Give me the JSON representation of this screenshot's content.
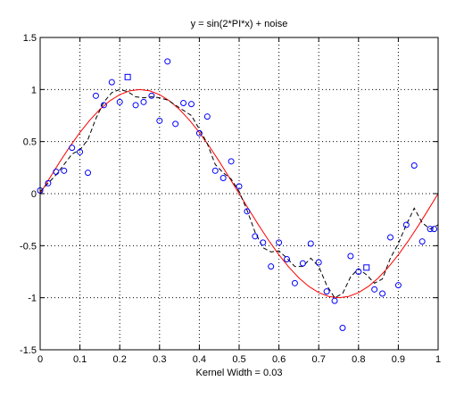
{
  "chart_data": {
    "type": "scatter",
    "title": "y = sin(2*PI*x) + noise",
    "xlabel": "Kernel Width = 0.03",
    "ylabel": "",
    "xlim": [
      0,
      1
    ],
    "ylim": [
      -1.5,
      1.5
    ],
    "xticks": [
      0,
      0.1,
      0.2,
      0.3,
      0.4,
      0.5,
      0.6,
      0.7,
      0.8,
      0.9,
      1
    ],
    "xtick_labels": [
      "0",
      "0.1",
      "0.2",
      "0.3",
      "0.4",
      "0.5",
      "0.6",
      "0.7",
      "0.8",
      "0.9",
      "1"
    ],
    "yticks": [
      -1.5,
      -1,
      -0.5,
      0,
      0.5,
      1,
      1.5
    ],
    "ytick_labels": [
      "-1.5",
      "-1",
      "-0.5",
      "0",
      "0.5",
      "1",
      "1.5"
    ],
    "grid": true,
    "colors": {
      "points": "#0000ff",
      "true_curve": "#ff0000",
      "smoothed": "#000000",
      "grid": "#000000",
      "axes": "#000000"
    },
    "series": [
      {
        "marker": "circle",
        "points": [
          [
            0.0,
            0.03
          ],
          [
            0.02,
            0.1
          ],
          [
            0.04,
            0.21
          ],
          [
            0.06,
            0.22
          ],
          [
            0.08,
            0.44
          ],
          [
            0.1,
            0.4
          ],
          [
            0.12,
            0.2
          ],
          [
            0.14,
            0.94
          ],
          [
            0.16,
            0.85
          ],
          [
            0.18,
            1.07
          ],
          [
            0.2,
            0.88
          ],
          [
            0.24,
            0.85
          ],
          [
            0.26,
            0.88
          ],
          [
            0.28,
            0.94
          ],
          [
            0.3,
            0.7
          ],
          [
            0.32,
            1.27
          ],
          [
            0.34,
            0.67
          ],
          [
            0.36,
            0.87
          ],
          [
            0.38,
            0.86
          ],
          [
            0.4,
            0.58
          ],
          [
            0.42,
            0.74
          ],
          [
            0.44,
            0.22
          ],
          [
            0.46,
            0.15
          ],
          [
            0.48,
            0.31
          ],
          [
            0.5,
            0.07
          ],
          [
            0.52,
            -0.17
          ],
          [
            0.54,
            -0.41
          ],
          [
            0.56,
            -0.47
          ],
          [
            0.58,
            -0.7
          ],
          [
            0.6,
            -0.47
          ],
          [
            0.62,
            -0.63
          ],
          [
            0.64,
            -0.86
          ],
          [
            0.66,
            -0.67
          ],
          [
            0.68,
            -0.48
          ],
          [
            0.7,
            -0.66
          ],
          [
            0.72,
            -0.94
          ],
          [
            0.74,
            -1.03
          ],
          [
            0.76,
            -1.29
          ],
          [
            0.78,
            -0.6
          ],
          [
            0.8,
            -0.75
          ],
          [
            0.84,
            -0.92
          ],
          [
            0.86,
            -0.96
          ],
          [
            0.88,
            -0.42
          ],
          [
            0.9,
            -0.88
          ],
          [
            0.92,
            -0.3
          ],
          [
            0.94,
            0.27
          ],
          [
            0.96,
            -0.46
          ],
          [
            0.98,
            -0.34
          ],
          [
            0.99,
            -0.34
          ]
        ]
      },
      {
        "marker": "square",
        "points": [
          [
            0.22,
            1.12
          ],
          [
            0.82,
            -0.71
          ]
        ]
      },
      {
        "style": "solid",
        "points": [
          [
            0.0,
            0.0
          ],
          [
            0.025,
            0.156
          ],
          [
            0.05,
            0.309
          ],
          [
            0.075,
            0.454
          ],
          [
            0.1,
            0.588
          ],
          [
            0.125,
            0.707
          ],
          [
            0.15,
            0.809
          ],
          [
            0.175,
            0.891
          ],
          [
            0.2,
            0.951
          ],
          [
            0.225,
            0.988
          ],
          [
            0.25,
            1.0
          ],
          [
            0.275,
            0.988
          ],
          [
            0.3,
            0.951
          ],
          [
            0.325,
            0.891
          ],
          [
            0.35,
            0.809
          ],
          [
            0.375,
            0.707
          ],
          [
            0.4,
            0.588
          ],
          [
            0.425,
            0.454
          ],
          [
            0.45,
            0.309
          ],
          [
            0.475,
            0.156
          ],
          [
            0.5,
            0.0
          ],
          [
            0.525,
            -0.156
          ],
          [
            0.55,
            -0.309
          ],
          [
            0.575,
            -0.454
          ],
          [
            0.6,
            -0.588
          ],
          [
            0.625,
            -0.707
          ],
          [
            0.65,
            -0.809
          ],
          [
            0.675,
            -0.891
          ],
          [
            0.7,
            -0.951
          ],
          [
            0.725,
            -0.988
          ],
          [
            0.75,
            -1.0
          ],
          [
            0.775,
            -0.988
          ],
          [
            0.8,
            -0.951
          ],
          [
            0.825,
            -0.891
          ],
          [
            0.85,
            -0.809
          ],
          [
            0.875,
            -0.707
          ],
          [
            0.9,
            -0.588
          ],
          [
            0.925,
            -0.454
          ],
          [
            0.95,
            -0.309
          ],
          [
            0.975,
            -0.156
          ],
          [
            1.0,
            0.0
          ]
        ]
      },
      {
        "style": "dashed",
        "points": [
          [
            0.0,
            0.02
          ],
          [
            0.02,
            0.1
          ],
          [
            0.04,
            0.18
          ],
          [
            0.06,
            0.28
          ],
          [
            0.08,
            0.38
          ],
          [
            0.1,
            0.42
          ],
          [
            0.12,
            0.52
          ],
          [
            0.14,
            0.72
          ],
          [
            0.16,
            0.88
          ],
          [
            0.18,
            0.97
          ],
          [
            0.2,
            1.0
          ],
          [
            0.22,
            0.98
          ],
          [
            0.24,
            0.93
          ],
          [
            0.26,
            0.92
          ],
          [
            0.28,
            0.93
          ],
          [
            0.3,
            0.92
          ],
          [
            0.32,
            0.9
          ],
          [
            0.34,
            0.85
          ],
          [
            0.36,
            0.8
          ],
          [
            0.38,
            0.75
          ],
          [
            0.4,
            0.62
          ],
          [
            0.42,
            0.48
          ],
          [
            0.44,
            0.28
          ],
          [
            0.46,
            0.2
          ],
          [
            0.48,
            0.14
          ],
          [
            0.5,
            0.02
          ],
          [
            0.52,
            -0.16
          ],
          [
            0.54,
            -0.37
          ],
          [
            0.56,
            -0.52
          ],
          [
            0.58,
            -0.56
          ],
          [
            0.6,
            -0.55
          ],
          [
            0.62,
            -0.62
          ],
          [
            0.64,
            -0.7
          ],
          [
            0.66,
            -0.7
          ],
          [
            0.68,
            -0.62
          ],
          [
            0.7,
            -0.7
          ],
          [
            0.72,
            -0.88
          ],
          [
            0.74,
            -1.0
          ],
          [
            0.76,
            -0.96
          ],
          [
            0.78,
            -0.8
          ],
          [
            0.8,
            -0.72
          ],
          [
            0.82,
            -0.78
          ],
          [
            0.84,
            -0.86
          ],
          [
            0.86,
            -0.82
          ],
          [
            0.88,
            -0.62
          ],
          [
            0.9,
            -0.48
          ],
          [
            0.92,
            -0.3
          ],
          [
            0.94,
            -0.14
          ],
          [
            0.96,
            -0.28
          ],
          [
            0.98,
            -0.34
          ],
          [
            1.0,
            -0.3
          ]
        ]
      }
    ]
  }
}
